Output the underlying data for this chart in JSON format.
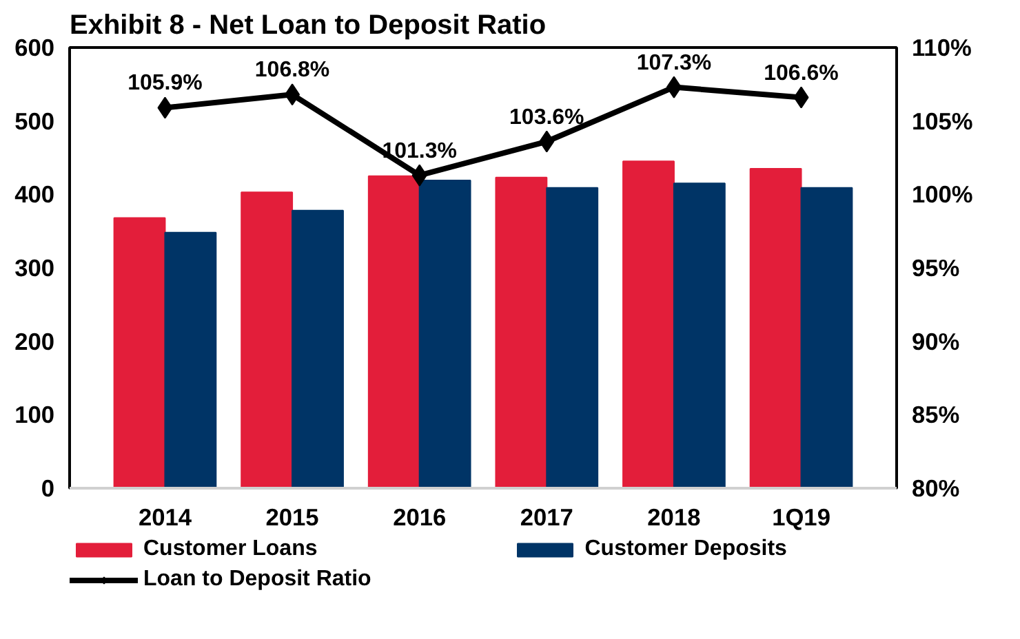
{
  "chart_data": {
    "type": "bar",
    "title": "Exhibit 8 - Net Loan to Deposit Ratio",
    "categories": [
      "2014",
      "2015",
      "2016",
      "2017",
      "2018",
      "1Q19"
    ],
    "series": [
      {
        "name": "Customer Loans",
        "color": "#e31e3a",
        "values": [
          368,
          403,
          425,
          423,
          445,
          435
        ]
      },
      {
        "name": "Customer Deposits",
        "color": "#003466",
        "values": [
          348,
          378,
          419,
          409,
          415,
          409
        ]
      },
      {
        "name": "Loan to Deposit Ratio",
        "type": "line",
        "axis": "y2",
        "color": "#000000",
        "marker": "diamond",
        "data_labels": true,
        "values": [
          105.9,
          106.8,
          101.3,
          103.6,
          107.3,
          106.6
        ],
        "value_labels": [
          "105.9%",
          "106.8%",
          "101.3%",
          "103.6%",
          "107.3%",
          "106.6%"
        ]
      }
    ],
    "ylim": [
      0,
      600
    ],
    "yticks": [
      0,
      100,
      200,
      300,
      400,
      500,
      600
    ],
    "y2lim": [
      80,
      110
    ],
    "y2ticks": [
      {
        "value": 80,
        "label": "80%"
      },
      {
        "value": 85,
        "label": "85%"
      },
      {
        "value": 90,
        "label": "90%"
      },
      {
        "value": 95,
        "label": "95%"
      },
      {
        "value": 100,
        "label": "100%"
      },
      {
        "value": 105,
        "label": "105%"
      },
      {
        "value": 110,
        "label": "110%"
      }
    ],
    "grid": false,
    "legend": "bottom"
  }
}
